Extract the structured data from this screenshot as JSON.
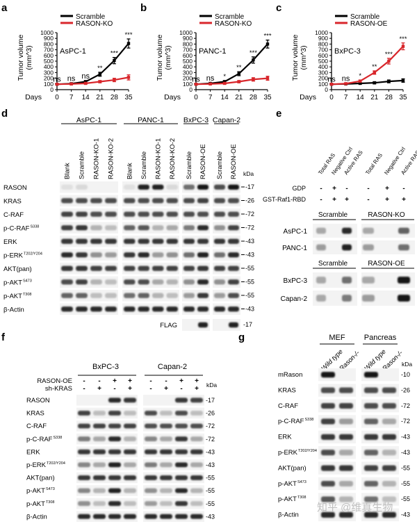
{
  "panel_letters": [
    "a",
    "b",
    "c",
    "d",
    "e",
    "f",
    "g"
  ],
  "common": {
    "days_label": "Days",
    "y_label_line1": "Tumor volume",
    "y_label_line2": "(mm^3)",
    "days_ticks": [
      "0",
      "7",
      "14",
      "21",
      "28",
      "35"
    ],
    "y_ticks": [
      "0",
      "100",
      "200",
      "300",
      "400",
      "500",
      "600",
      "700",
      "800",
      "900",
      "1000"
    ],
    "kda": "kDa",
    "watermark": "知乎 @维真生物"
  },
  "chart_data": [
    {
      "type": "line",
      "panel": "a",
      "annotation": "AsPC-1",
      "x": [
        0,
        7,
        14,
        21,
        28,
        35
      ],
      "ylim": [
        0,
        1000
      ],
      "xlabel": "Days",
      "ylabel": "Tumor volume (mm^3)",
      "series": [
        {
          "name": "Scramble",
          "color": "#000000",
          "values": [
            95,
            105,
            140,
            270,
            510,
            810
          ],
          "errors": [
            10,
            12,
            20,
            35,
            55,
            80
          ]
        },
        {
          "name": "RASON-KO",
          "color": "#d8262b",
          "values": [
            95,
            100,
            110,
            140,
            170,
            215
          ],
          "errors": [
            10,
            10,
            15,
            20,
            30,
            45
          ]
        }
      ],
      "significance": [
        "ns",
        "ns",
        "ns",
        "**",
        "***",
        "***"
      ],
      "legend": "top-left"
    },
    {
      "type": "line",
      "panel": "b",
      "annotation": "PANC-1",
      "x": [
        0,
        7,
        14,
        21,
        28,
        35
      ],
      "ylim": [
        0,
        1000
      ],
      "xlabel": "Days",
      "ylabel": "Tumor volume (mm^3)",
      "series": [
        {
          "name": "Scramble",
          "color": "#000000",
          "values": [
            95,
            110,
            140,
            280,
            520,
            800
          ],
          "errors": [
            10,
            12,
            20,
            35,
            55,
            70
          ]
        },
        {
          "name": "RASON-KO",
          "color": "#d8262b",
          "values": [
            95,
            100,
            110,
            140,
            180,
            200
          ],
          "errors": [
            10,
            10,
            15,
            20,
            30,
            35
          ]
        }
      ],
      "significance": [
        "ns",
        "ns",
        "*",
        "**",
        "***",
        "***"
      ],
      "legend": "top-left"
    },
    {
      "type": "line",
      "panel": "c",
      "annotation": "BxPC-3",
      "x": [
        0,
        7,
        14,
        21,
        28,
        35
      ],
      "ylim": [
        0,
        1000
      ],
      "xlabel": "Days",
      "ylabel": "Tumor volume (mm^3)",
      "series": [
        {
          "name": "Scramble",
          "color": "#000000",
          "values": [
            95,
            100,
            110,
            120,
            145,
            160
          ],
          "errors": [
            10,
            10,
            15,
            20,
            25,
            30
          ]
        },
        {
          "name": "RASON-OE",
          "color": "#d8262b",
          "values": [
            95,
            105,
            150,
            300,
            500,
            760
          ],
          "errors": [
            10,
            12,
            20,
            30,
            50,
            60
          ]
        }
      ],
      "significance": [
        "ns",
        "ns",
        "*",
        "**",
        "***",
        "***"
      ],
      "legend": "top-left"
    }
  ],
  "panel_d": {
    "groups": [
      "AsPC-1",
      "PANC-1",
      "BxPC-3",
      "Capan-2"
    ],
    "lanes": [
      "Blank",
      "Scramble",
      "RASON-KO-1",
      "RASON-KO-2",
      "Blank",
      "Scramble",
      "RASON-KO-1",
      "RASON-KO-2",
      "Scramble",
      "RASON-OE",
      "Scramble",
      "RASON-OE"
    ],
    "rows": [
      {
        "label": "RASON",
        "sup": "",
        "kda": "17"
      },
      {
        "label": "KRAS",
        "sup": "",
        "kda": "26"
      },
      {
        "label": "C-RAF",
        "sup": "",
        "kda": "72"
      },
      {
        "label": "p-C-RAF",
        "sup": "S338",
        "kda": "72"
      },
      {
        "label": "ERK",
        "sup": "",
        "kda": "43"
      },
      {
        "label": "p-ERK",
        "sup": "T202/Y204",
        "kda": "43"
      },
      {
        "label": "AKT(pan)",
        "sup": "",
        "kda": "55"
      },
      {
        "label": "p-AKT",
        "sup": "S473",
        "kda": "55"
      },
      {
        "label": "p-AKT",
        "sup": "T308",
        "kda": "55"
      },
      {
        "label": "β-Actin",
        "sup": "",
        "kda": "43"
      }
    ],
    "flag": {
      "label": "FLAG",
      "kda": "17"
    }
  },
  "panel_e": {
    "lanes": [
      "Total RAS",
      "Negative Ctrl",
      "Active RAS",
      "Total RAS",
      "Negative Ctrl",
      "Active RAS"
    ],
    "gdp_label": "GDP",
    "gst_label": "GST-Raf1-RBD",
    "gdp_marks": [
      "-",
      "+",
      "-",
      "-",
      "+",
      "-"
    ],
    "gst_marks": [
      "-",
      "+",
      "+",
      "-",
      "+",
      "+"
    ],
    "headers_top": [
      "Scramble",
      "RASON-KO"
    ],
    "headers_bottom": [
      "Scramble",
      "RASON-OE"
    ],
    "rows_top": [
      "AsPC-1",
      "PANC-1"
    ],
    "rows_bottom": [
      "BxPC-3",
      "Capan-2"
    ]
  },
  "panel_f": {
    "groups": [
      "BxPC-3",
      "Capan-2"
    ],
    "treatments": [
      {
        "label": "RASON-OE",
        "marks": [
          "-",
          "-",
          "+",
          "+",
          "-",
          "-",
          "+",
          "+"
        ]
      },
      {
        "label": "sh-KRAS",
        "marks": [
          "-",
          "+",
          "-",
          "+",
          "-",
          "+",
          "-",
          "+"
        ]
      }
    ],
    "rows": [
      {
        "label": "RASON",
        "sup": "",
        "kda": "17"
      },
      {
        "label": "KRAS",
        "sup": "",
        "kda": "26"
      },
      {
        "label": "C-RAF",
        "sup": "",
        "kda": "72"
      },
      {
        "label": "p-C-RAF",
        "sup": "S338",
        "kda": "72"
      },
      {
        "label": "ERK",
        "sup": "",
        "kda": "43"
      },
      {
        "label": "p-ERK",
        "sup": "T202/Y204",
        "kda": "43"
      },
      {
        "label": "AKT(pan)",
        "sup": "",
        "kda": "55"
      },
      {
        "label": "p-AKT",
        "sup": "S473",
        "kda": "55"
      },
      {
        "label": "p-AKT",
        "sup": "T308",
        "kda": "55"
      },
      {
        "label": "β-Actin",
        "sup": "",
        "kda": "43"
      }
    ]
  },
  "panel_g": {
    "groups": [
      "MEF",
      "Pancreas"
    ],
    "lanes": [
      "Wild type",
      "Rason-/-",
      "Wild type",
      "Rason-/-"
    ],
    "rows": [
      {
        "label": "mRason",
        "sup": "",
        "kda": "10"
      },
      {
        "label": "KRAS",
        "sup": "",
        "kda": "26"
      },
      {
        "label": "C-RAF",
        "sup": "",
        "kda": "72"
      },
      {
        "label": "p-C-RAF",
        "sup": "S338",
        "kda": "72"
      },
      {
        "label": "ERK",
        "sup": "",
        "kda": "43"
      },
      {
        "label": "p-ERK",
        "sup": "T202/Y204",
        "kda": "43"
      },
      {
        "label": "AKT(pan)",
        "sup": "",
        "kda": "55"
      },
      {
        "label": "p-AKT",
        "sup": "S473",
        "kda": "55"
      },
      {
        "label": "p-AKT",
        "sup": "T308",
        "kda": "55"
      },
      {
        "label": "β-Actin",
        "sup": "",
        "kda": "43"
      }
    ]
  }
}
